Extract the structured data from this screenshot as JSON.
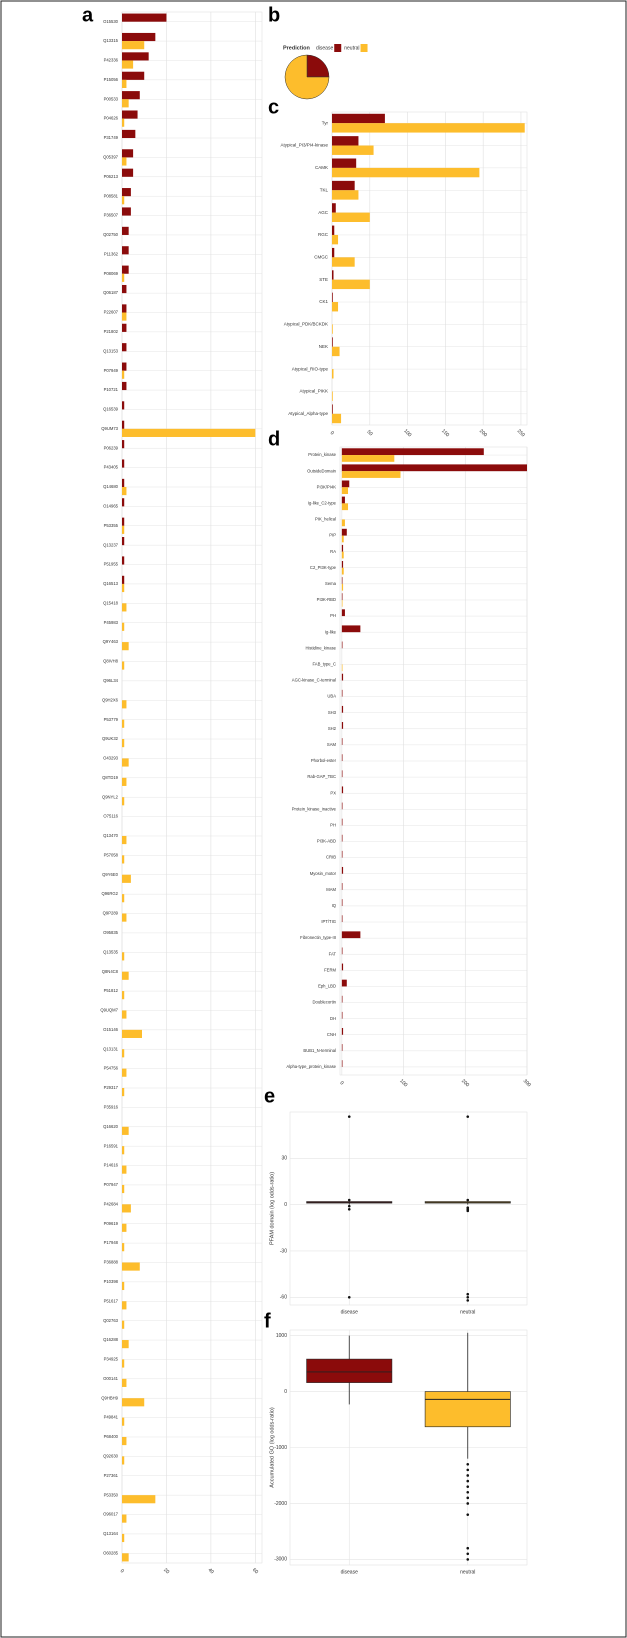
{
  "chart_data": [
    {
      "type": "hbar",
      "panel_label": "a",
      "categories": [
        "O15530",
        "Q13315",
        "P42336",
        "P15056",
        "P00533",
        "P04626",
        "P31749",
        "Q05397",
        "P06213",
        "P08581",
        "P36507",
        "Q02750",
        "P11362",
        "P08069",
        "Q06187",
        "P22607",
        "P21802",
        "Q13153",
        "P07949",
        "P10721",
        "Q16539",
        "Q9UM73",
        "P06239",
        "P43405",
        "Q14680",
        "O14965",
        "P53355",
        "Q13237",
        "P51955",
        "Q16513",
        "Q15418",
        "P45983",
        "Q9Y463",
        "Q8IVH8",
        "Q96L34",
        "Q9H2X6",
        "P53779",
        "Q9UK32",
        "O43293",
        "Q8TD19",
        "Q9NYL2",
        "O75116",
        "Q13470",
        "P57058",
        "Q9Y6E0",
        "Q96RG2",
        "Q9P289",
        "O95835",
        "Q13535",
        "Q8N4C8",
        "P51812",
        "Q9UQM7",
        "O15146",
        "Q13131",
        "P54756",
        "P29317",
        "P35916",
        "Q16620",
        "P16591",
        "P14616",
        "P07947",
        "P42684",
        "P09619",
        "P17948",
        "P36888",
        "P10398",
        "P51617",
        "Q02763",
        "Q16288",
        "P34925",
        "O00141",
        "Q9HBH9",
        "P49841",
        "P68400",
        "Q92630",
        "P27361",
        "P53350",
        "O96017",
        "Q13164",
        "O60285"
      ],
      "series": [
        {
          "color": "#8b0b0b",
          "values": [
            20,
            15,
            12,
            10,
            8,
            7,
            6,
            5,
            5,
            4,
            4,
            3,
            3,
            3,
            2,
            2,
            2,
            2,
            2,
            2,
            1,
            1,
            1,
            1,
            1,
            1,
            1,
            1,
            1,
            1,
            0,
            0,
            0,
            0,
            0,
            0,
            0,
            0,
            0,
            0,
            0,
            0,
            0,
            0,
            0,
            0,
            0,
            0,
            0,
            0,
            0,
            0,
            0,
            0,
            0,
            0,
            0,
            0,
            0,
            0,
            0,
            0,
            0,
            0,
            0,
            0,
            0,
            0,
            0,
            0,
            0,
            0,
            0,
            0,
            0,
            0,
            0,
            0,
            0,
            0
          ]
        },
        {
          "color": "#fdbd2c",
          "values": [
            0,
            10,
            5,
            2,
            3,
            1,
            0,
            2,
            0,
            1,
            0,
            0,
            0,
            1,
            0,
            2,
            0,
            0,
            1,
            0,
            0,
            60,
            0,
            0,
            2,
            0,
            1,
            0,
            0,
            1,
            2,
            1,
            3,
            1,
            0,
            2,
            1,
            1,
            3,
            2,
            1,
            0,
            2,
            1,
            4,
            1,
            2,
            0,
            1,
            3,
            1,
            2,
            9,
            1,
            2,
            1,
            0,
            3,
            1,
            2,
            1,
            4,
            2,
            1,
            8,
            1,
            2,
            1,
            3,
            1,
            2,
            10,
            1,
            2,
            1,
            0,
            15,
            2,
            1,
            3
          ]
        }
      ],
      "xlim": [
        0,
        63
      ],
      "xticks": [
        0,
        20,
        40,
        60
      ],
      "grid": true
    },
    {
      "type": "pie",
      "panel_label": "b",
      "legend_title": "Prediction",
      "categories": [
        "disease",
        "neutral"
      ],
      "values": [
        25,
        75
      ],
      "colors": [
        "#8b0b0b",
        "#fdbd2c"
      ]
    },
    {
      "type": "hbar",
      "panel_label": "c",
      "categories": [
        "Tyr",
        "Atypical_PI3/PI4-kinase",
        "CAMK",
        "TKL",
        "AGC",
        "RGC",
        "CMGC",
        "STE",
        "CK1",
        "Atypical_PDK/BCKDK",
        "NEK",
        "Atypical_RIO-type",
        "Atypical_PIKK",
        "Atypical_Alpha-type"
      ],
      "series": [
        {
          "color": "#8b0b0b",
          "values": [
            70,
            35,
            32,
            30,
            5,
            3,
            3,
            2,
            1,
            0,
            1,
            0,
            0,
            1
          ]
        },
        {
          "color": "#fdbd2c",
          "values": [
            255,
            55,
            195,
            35,
            50,
            8,
            30,
            50,
            8,
            1,
            10,
            2,
            1,
            12
          ]
        }
      ],
      "xlim": [
        0,
        258
      ],
      "xticks": [
        0,
        50,
        100,
        150,
        200,
        250
      ],
      "grid": true
    },
    {
      "type": "hbar",
      "panel_label": "d",
      "categories": [
        "Protein_kinase",
        "OutsideDomain",
        "PI3K/PI4K",
        "Ig-like_C2-type",
        "PIK_helical",
        "PIP",
        "RA",
        "C2_PI3K-type",
        "Sema",
        "PI3K-RBD",
        "PH",
        "Ig-like",
        "Histidine_kinase",
        "FAB_type_C",
        "AGC-kinase_C-terminal",
        "UBA",
        "SH3",
        "SH2",
        "SAM",
        "Phorbol-ester",
        "Rab-GAP_TBC",
        "PX",
        "Protein_kinase_inactive",
        "PH",
        "PI3K-ABD",
        "CRIB",
        "Myosin_motor",
        "MAM",
        "IQ",
        "IPT/TIG",
        "Fibronectin_type-III",
        "FAT",
        "FERM",
        "Eph_LBD",
        "Doublecortin",
        "DH",
        "CNH",
        "BUB1_N-terminal",
        "Alpha-type_protein_kinase"
      ],
      "series": [
        {
          "color": "#8b0b0b",
          "values": [
            230,
            300,
            12,
            5,
            0,
            8,
            2,
            2,
            1,
            1,
            5,
            30,
            1,
            0,
            2,
            1,
            2,
            2,
            1,
            1,
            1,
            2,
            1,
            1,
            1,
            1,
            2,
            1,
            1,
            1,
            30,
            1,
            2,
            8,
            1,
            1,
            2,
            1,
            1
          ]
        },
        {
          "color": "#fdbd2c",
          "values": [
            85,
            95,
            10,
            10,
            5,
            3,
            3,
            3,
            2,
            1,
            0,
            0,
            0,
            1,
            0,
            0,
            0,
            0,
            0,
            0,
            0,
            0,
            0,
            0,
            0,
            0,
            0,
            0,
            0,
            0,
            0,
            0,
            0,
            0,
            0,
            0,
            0,
            0,
            0
          ]
        }
      ],
      "xlim": [
        -3,
        300
      ],
      "xticks": [
        0,
        100,
        200,
        300
      ],
      "grid": true
    },
    {
      "type": "box",
      "panel_label": "e",
      "y_label": "PFAM domain (log odds-ratio)",
      "categories": [
        "disease",
        "neutral"
      ],
      "boxes": [
        {
          "color": "#8b0b0b",
          "q1": 1,
          "median": 1.5,
          "q3": 2,
          "whisker_low": 0,
          "whisker_high": 3,
          "outliers": [
            57,
            3,
            -1,
            -3,
            -60
          ]
        },
        {
          "color": "#fdbd2c",
          "q1": 1,
          "median": 1.5,
          "q3": 2,
          "whisker_low": 0,
          "whisker_high": 3,
          "outliers": [
            57,
            3,
            -2,
            -3,
            -4,
            -58,
            -60,
            -62
          ]
        }
      ],
      "ylim": [
        -65,
        60
      ],
      "yticks": [
        -60,
        -30,
        0,
        30
      ],
      "grid": true
    },
    {
      "type": "box",
      "panel_label": "f",
      "y_label": "Accumulated GO (log odds-ratio)",
      "categories": [
        "disease",
        "neutral"
      ],
      "boxes": [
        {
          "color": "#8b0b0b",
          "q1": 160,
          "median": 350,
          "q3": 580,
          "whisker_low": -230,
          "whisker_high": 1000
        },
        {
          "color": "#fdbd2c",
          "q1": -630,
          "median": -140,
          "q3": 0,
          "whisker_low": -1200,
          "whisker_high": 1050,
          "outliers": [
            -1300,
            -1400,
            -1500,
            -1600,
            -1700,
            -1800,
            -1900,
            -2000,
            -2200,
            -2800,
            -2900,
            -3000
          ]
        }
      ],
      "ylim": [
        -3100,
        1100
      ],
      "yticks": [
        -3000,
        -2000,
        -1000,
        0,
        1000
      ],
      "grid": true
    }
  ]
}
